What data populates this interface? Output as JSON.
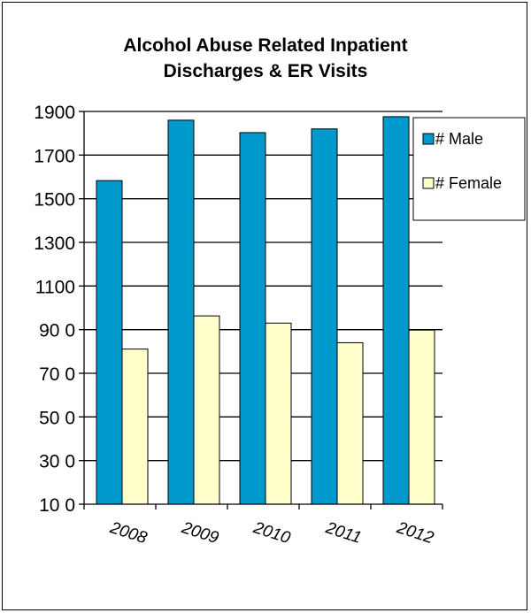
{
  "chart_data": {
    "type": "bar",
    "title_lines": [
      "Alcohol Abuse Related Inpatient",
      "Discharges & ER Visits"
    ],
    "categories": [
      "2008",
      "2009",
      "2010",
      "2011",
      "2012"
    ],
    "series": [
      {
        "name": "# Male",
        "values": [
          1583,
          1860,
          1803,
          1820,
          1876
        ],
        "color": "#0099CC"
      },
      {
        "name": "# Female",
        "values": [
          811,
          963,
          930,
          840,
          898
        ],
        "color": "#FFFFCC"
      }
    ],
    "ylim": [
      100,
      1900
    ],
    "yticks": [
      100,
      300,
      500,
      700,
      900,
      1100,
      1300,
      1500,
      1700,
      1900
    ],
    "ytick_labels": [
      "10 0",
      "30 0",
      "50 0",
      "70 0",
      "90 0",
      "1100",
      "1300",
      "1500",
      "1700",
      "1900"
    ],
    "grid": true,
    "legend_position": "top-right",
    "xlabel": "",
    "ylabel": ""
  }
}
